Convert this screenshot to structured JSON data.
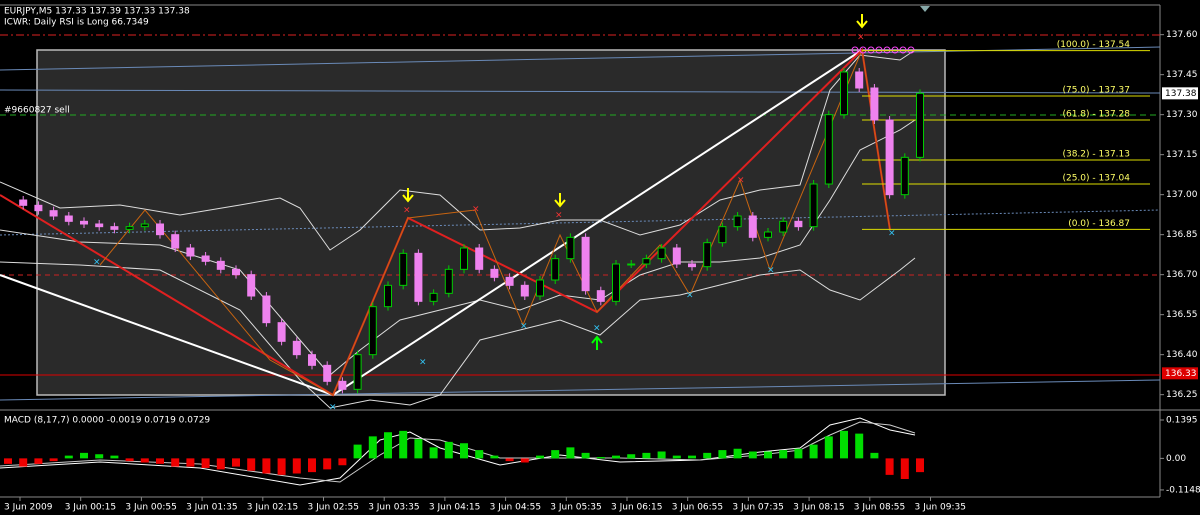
{
  "header": {
    "symbol_line": "EURJPY,M5  137.33 137.39 137.33 137.38",
    "indicator_line": "ICWR: Daily RSI is Long 66.7349"
  },
  "trade_label": "#9660827 sell",
  "price_axis": {
    "ylim": [
      136.2,
      137.7
    ],
    "ticks": [
      {
        "value": 137.6,
        "label": "137.60"
      },
      {
        "value": 137.45,
        "label": "137.45"
      },
      {
        "value": 137.3,
        "label": "137.30"
      },
      {
        "value": 137.15,
        "label": "137.15"
      },
      {
        "value": 137.0,
        "label": "137.00"
      },
      {
        "value": 136.85,
        "label": "136.85"
      },
      {
        "value": 136.7,
        "label": "136.70"
      },
      {
        "value": 136.55,
        "label": "136.55"
      },
      {
        "value": 136.4,
        "label": "136.40"
      },
      {
        "value": 136.25,
        "label": "136.25"
      }
    ]
  },
  "price_tags": [
    {
      "value": 137.38,
      "label": "137.38"
    },
    {
      "value": 136.33,
      "label": "136.33"
    }
  ],
  "fib_levels": [
    {
      "value": 137.54,
      "label": "(100.0) - 137.54"
    },
    {
      "value": 137.37,
      "label": "(75.0) - 137.37"
    },
    {
      "value": 137.28,
      "label": "(61.8) - 137.28"
    },
    {
      "value": 137.13,
      "label": "(38.2) - 137.13"
    },
    {
      "value": 137.04,
      "label": "(25.0) - 137.04"
    },
    {
      "value": 136.87,
      "label": "(0.0) - 136.87"
    }
  ],
  "closes": [
    136.98,
    136.96,
    136.94,
    136.92,
    136.9,
    136.89,
    136.88,
    136.87,
    136.88,
    136.89,
    136.85,
    136.8,
    136.77,
    136.75,
    136.72,
    136.7,
    136.62,
    136.52,
    136.45,
    136.4,
    136.36,
    136.3,
    136.27,
    136.4,
    136.58,
    136.66,
    136.78,
    136.6,
    136.63,
    136.72,
    136.8,
    136.72,
    136.69,
    136.66,
    136.62,
    136.68,
    136.76,
    136.84,
    136.64,
    136.6,
    136.74,
    136.74,
    136.76,
    136.8,
    136.74,
    136.73,
    136.82,
    136.88,
    136.92,
    136.84,
    136.86,
    136.9,
    136.88,
    137.04,
    137.3,
    137.46,
    137.4,
    137.28,
    137.0,
    137.14,
    137.38
  ],
  "macd": {
    "label": "MACD  (8,17,7) 0.0000 -0.0019 0.0719 0.0729",
    "ylim": [
      -0.115,
      0.1395
    ],
    "ticks": [
      {
        "value": 0.1395,
        "label": "0.1395"
      },
      {
        "value": 0,
        "label": "0.00"
      },
      {
        "value": -0.1148,
        "label": "-0.1148"
      }
    ],
    "histogram": [
      -0.02,
      -0.03,
      -0.02,
      -0.01,
      0.01,
      0.02,
      0.015,
      0.01,
      -0.01,
      -0.015,
      -0.02,
      -0.03,
      -0.03,
      -0.035,
      -0.04,
      -0.03,
      -0.045,
      -0.055,
      -0.06,
      -0.055,
      -0.05,
      -0.04,
      -0.025,
      0.05,
      0.08,
      0.095,
      0.1,
      0.07,
      0.04,
      0.06,
      0.055,
      0.03,
      0.01,
      -0.01,
      -0.015,
      0.01,
      0.03,
      0.04,
      0.02,
      0.005,
      0.01,
      0.015,
      0.02,
      0.025,
      0.01,
      0.01,
      0.02,
      0.03,
      0.035,
      0.025,
      0.025,
      0.03,
      0.035,
      0.05,
      0.08,
      0.1,
      0.09,
      0.02,
      -0.06,
      -0.075,
      -0.05
    ]
  },
  "time_labels": [
    "3 Jun 2009",
    "3 Jun 00:15",
    "3 Jun 00:55",
    "3 Jun 01:35",
    "3 Jun 02:15",
    "3 Jun 02:55",
    "3 Jun 03:35",
    "3 Jun 04:15",
    "3 Jun 04:55",
    "3 Jun 05:35",
    "3 Jun 06:15",
    "3 Jun 06:55",
    "3 Jun 07:35",
    "3 Jun 08:15",
    "3 Jun 08:55",
    "3 Jun 09:35"
  ]
}
